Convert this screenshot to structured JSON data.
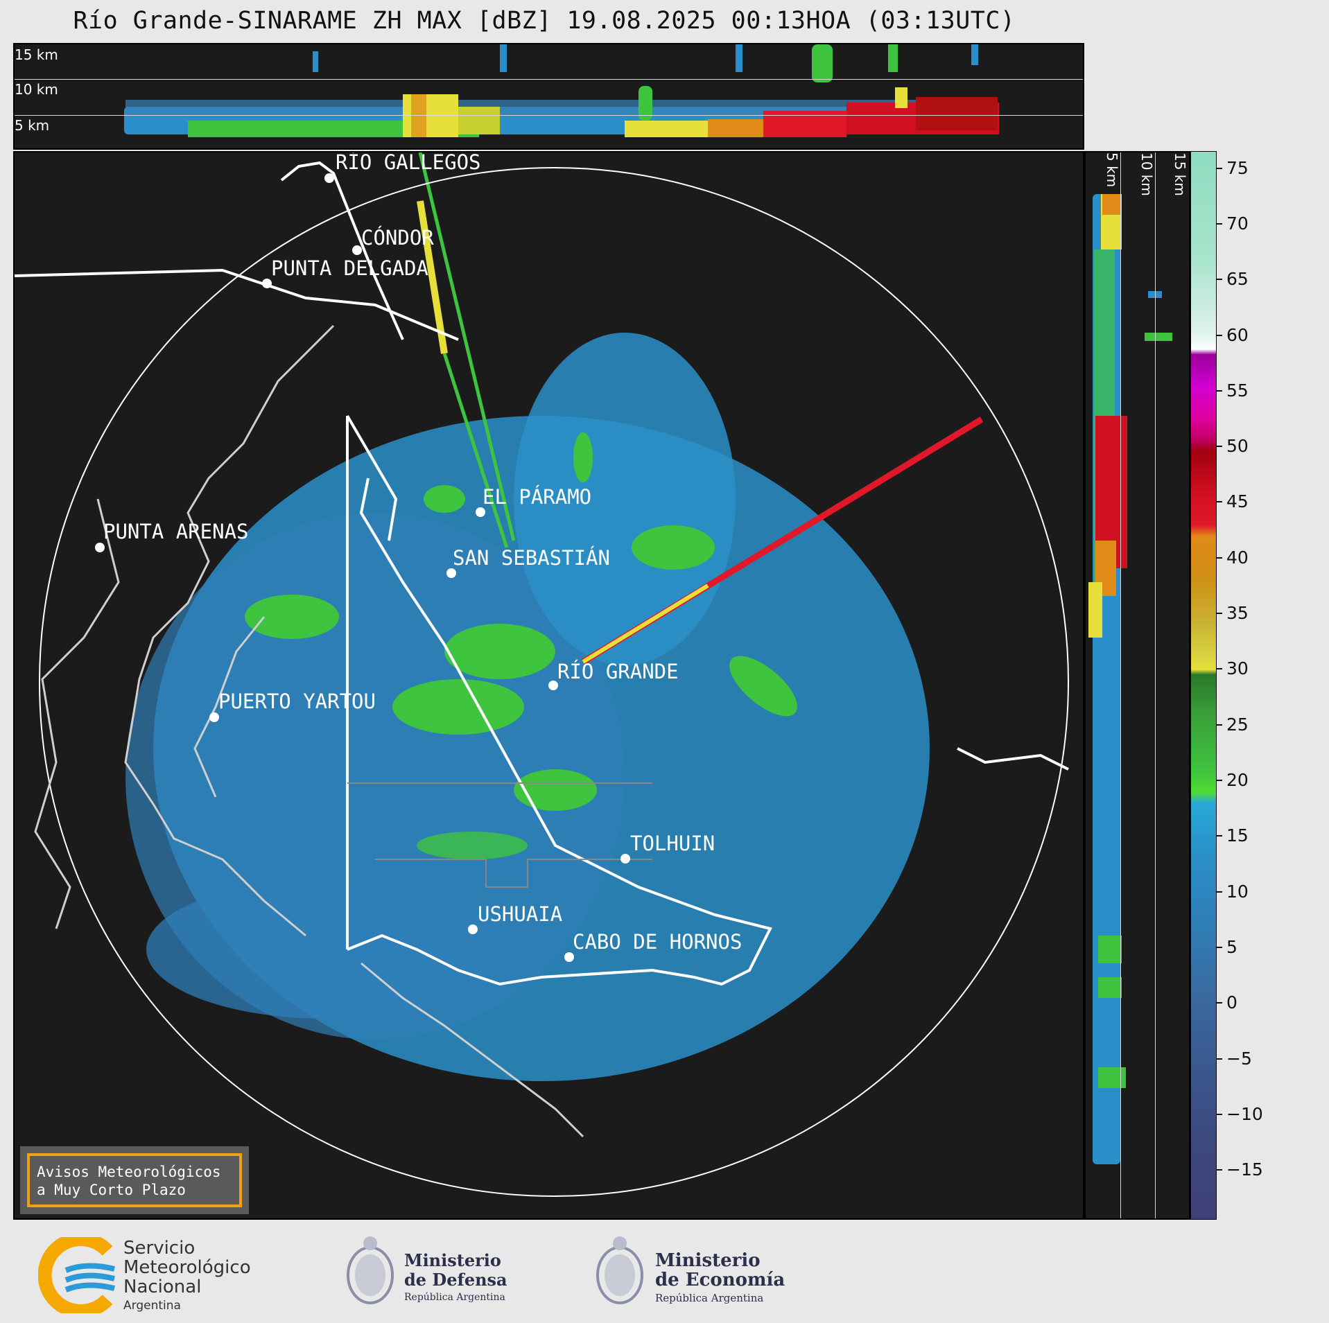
{
  "title": "Río Grande-SINARAME ZH MAX [dBZ] 19.08.2025 00:13HOA (03:13UTC)",
  "top_section": {
    "heights": [
      "15 km",
      "10 km",
      "5 km"
    ]
  },
  "right_section": {
    "heights": [
      "5 km",
      "10 km",
      "15 km"
    ]
  },
  "colorbar": {
    "ticks": [
      "75",
      "70",
      "65",
      "60",
      "55",
      "50",
      "45",
      "40",
      "35",
      "30",
      "25",
      "20",
      "15",
      "10",
      "5",
      "0",
      "−5",
      "−10",
      "−15"
    ]
  },
  "cities": [
    {
      "name": "RÍO GALLEGOS"
    },
    {
      "name": "CÓNDOR"
    },
    {
      "name": "PUNTA DELGADA"
    },
    {
      "name": "PUNTA ARENAS"
    },
    {
      "name": "EL PÁRAMO"
    },
    {
      "name": "SAN SEBASTIÁN"
    },
    {
      "name": "RÍO GRANDE"
    },
    {
      "name": "PUERTO YARTOU"
    },
    {
      "name": "TOLHUIN"
    },
    {
      "name": "USHUAIA"
    },
    {
      "name": "CABO DE HORNOS"
    }
  ],
  "badge": {
    "line1": "Avisos Meteorológicos",
    "line2": "a Muy Corto Plazo"
  },
  "footer": {
    "smn": {
      "line1": "Servicio",
      "line2": "Meteorológico",
      "line3": "Nacional",
      "line4": "Argentina"
    },
    "defensa": {
      "line1": "Ministerio",
      "line2": "de Defensa",
      "line3": "República Argentina"
    },
    "economia": {
      "line1": "Ministerio",
      "line2": "de Economía",
      "line3": "República Argentina"
    }
  }
}
